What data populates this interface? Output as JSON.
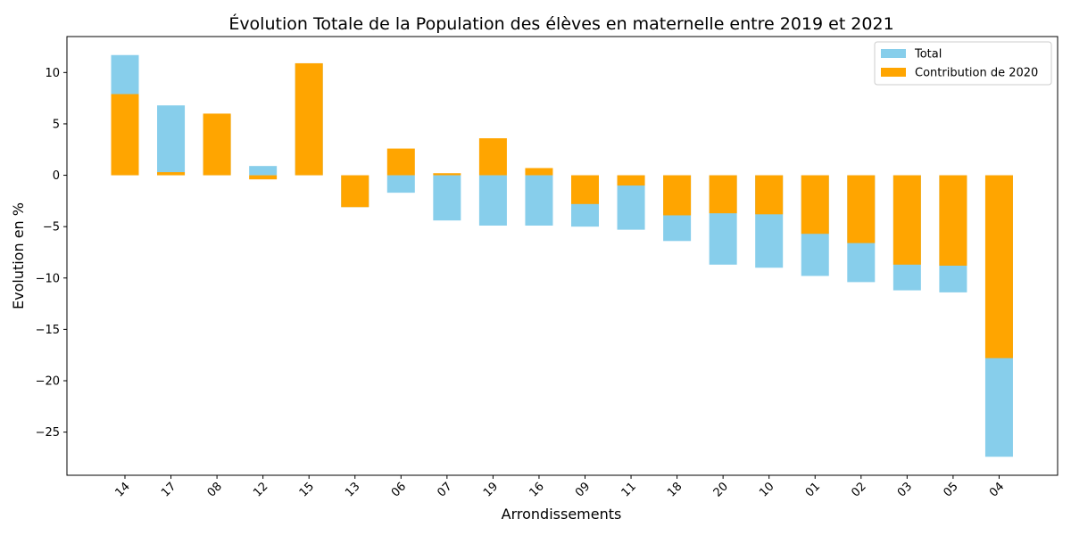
{
  "chart_data": {
    "type": "bar",
    "title": "Évolution Totale de la Population des élèves en maternelle entre 2019 et 2021",
    "xlabel": "Arrondissements",
    "ylabel": "Evolution en %",
    "categories": [
      "14",
      "17",
      "08",
      "12",
      "15",
      "13",
      "06",
      "07",
      "19",
      "16",
      "09",
      "11",
      "18",
      "20",
      "10",
      "01",
      "02",
      "03",
      "05",
      "04"
    ],
    "series": [
      {
        "name": "Total",
        "color": "#87ceeb",
        "values": [
          11.7,
          6.8,
          5.9,
          0.9,
          10.9,
          -3.1,
          -1.7,
          -4.4,
          -4.9,
          -4.9,
          -5.0,
          -5.3,
          -6.4,
          -8.7,
          -9.0,
          -9.8,
          -10.4,
          -11.2,
          -11.4,
          -27.4
        ]
      },
      {
        "name": "Contribution de 2020",
        "color": "#ffa500",
        "values": [
          7.9,
          0.3,
          6.0,
          -0.4,
          10.9,
          -3.1,
          2.6,
          0.2,
          3.6,
          0.7,
          -2.8,
          -1.0,
          -3.9,
          -3.7,
          -3.8,
          -5.7,
          -6.6,
          -8.7,
          -8.8,
          -17.8
        ]
      }
    ],
    "ylim": [
      -29.2,
      13.5
    ],
    "yticks": [
      10,
      5,
      0,
      -5,
      -10,
      -15,
      -20,
      -25
    ],
    "ytick_labels": [
      "10",
      "5",
      "0",
      "−5",
      "−10",
      "−15",
      "−20",
      "−25"
    ],
    "grid": false,
    "legend_position": "top-right"
  }
}
